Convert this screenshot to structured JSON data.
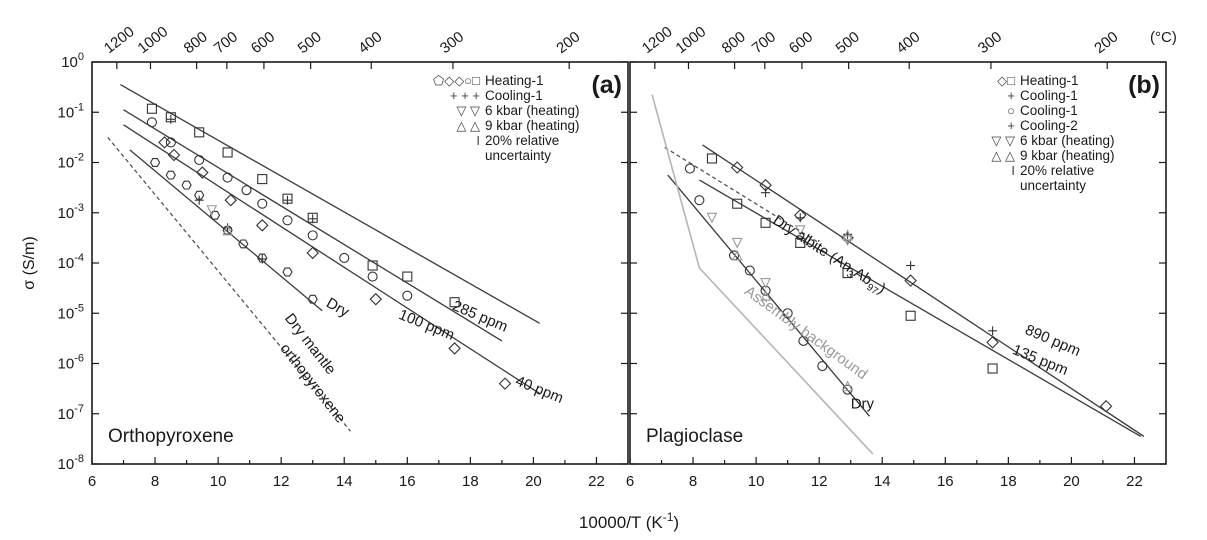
{
  "chart_data": [
    {
      "type": "scatter",
      "panel_label": "(a)",
      "mineral": "Orthopyroxene",
      "xlabel": "10000/T (K",
      "xlabel_sup": "-1",
      "xlabel_end": ")",
      "ylabel": "σ (S/m)",
      "xlim": [
        6,
        23
      ],
      "ylim": [
        -8,
        0
      ],
      "y_scale": "log",
      "x_ticks": [
        6,
        8,
        10,
        12,
        14,
        16,
        18,
        20,
        22
      ],
      "y_ticks": [
        0,
        -1,
        -2,
        -3,
        -4,
        -5,
        -6,
        -7,
        -8
      ],
      "top_axis_label": "",
      "top_ticks": [
        1200,
        1000,
        800,
        700,
        600,
        500,
        400,
        300,
        200
      ],
      "legend_position": "top-right",
      "legend": [
        {
          "symbols": "⬠◇◇○□",
          "label": "Heating-1"
        },
        {
          "symbols": "+ + +",
          "label": "Cooling-1"
        },
        {
          "symbols": "▽ ▽",
          "label": "6 kbar (heating)"
        },
        {
          "symbols": "△ △",
          "label": "9 kbar (heating)"
        },
        {
          "symbols": "I",
          "label": "20% relative"
        },
        {
          "symbols": "",
          "label": "uncertainty"
        }
      ],
      "series": [
        {
          "name": "285 ppm",
          "line": [
            [
              6.9,
              -0.45
            ],
            [
              20.2,
              -5.2
            ]
          ],
          "points": [
            [
              7.9,
              -0.93,
              "square"
            ],
            [
              8.5,
              -1.1,
              "square"
            ],
            [
              9.4,
              -1.4,
              "square"
            ],
            [
              10.3,
              -1.8,
              "square"
            ],
            [
              11.4,
              -2.33,
              "square"
            ],
            [
              12.2,
              -2.72,
              "square"
            ],
            [
              13.0,
              -3.1,
              "square"
            ],
            [
              14.9,
              -4.05,
              "square"
            ],
            [
              16.0,
              -4.27,
              "square"
            ],
            [
              17.5,
              -4.78,
              "square"
            ],
            [
              8.5,
              -1.14,
              "plus"
            ],
            [
              12.2,
              -2.75,
              "plus"
            ],
            [
              13.0,
              -3.12,
              "plus"
            ]
          ]
        },
        {
          "name": "100 ppm",
          "line": [
            [
              7.0,
              -0.95
            ],
            [
              19.0,
              -5.55
            ]
          ],
          "points": [
            [
              7.9,
              -1.2,
              "circle"
            ],
            [
              8.5,
              -1.6,
              "circle"
            ],
            [
              9.4,
              -1.95,
              "circle"
            ],
            [
              10.3,
              -2.3,
              "circle"
            ],
            [
              10.9,
              -2.55,
              "circle"
            ],
            [
              11.4,
              -2.82,
              "circle"
            ],
            [
              12.2,
              -3.15,
              "circle"
            ],
            [
              13.0,
              -3.45,
              "circle"
            ],
            [
              14.0,
              -3.9,
              "circle"
            ],
            [
              14.9,
              -4.27,
              "circle"
            ],
            [
              16.0,
              -4.65,
              "circle"
            ]
          ]
        },
        {
          "name": "40 ppm",
          "line": [
            [
              7.0,
              -1.25
            ],
            [
              20.2,
              -6.6
            ]
          ],
          "points": [
            [
              8.3,
              -1.6,
              "diamond"
            ],
            [
              8.6,
              -1.85,
              "diamond"
            ],
            [
              9.5,
              -2.2,
              "diamond"
            ],
            [
              10.4,
              -2.75,
              "diamond"
            ],
            [
              11.4,
              -3.25,
              "diamond"
            ],
            [
              13.0,
              -3.8,
              "diamond"
            ],
            [
              15.0,
              -4.72,
              "diamond"
            ],
            [
              17.5,
              -5.7,
              "diamond"
            ],
            [
              19.1,
              -6.4,
              "diamond"
            ]
          ]
        },
        {
          "name": "Dry",
          "line": [
            [
              7.2,
              -1.75
            ],
            [
              13.3,
              -4.95
            ]
          ],
          "points": [
            [
              8.0,
              -2.0,
              "hexagon"
            ],
            [
              8.5,
              -2.25,
              "hexagon"
            ],
            [
              9.0,
              -2.45,
              "hexagon"
            ],
            [
              9.4,
              -2.65,
              "hexagon"
            ],
            [
              9.9,
              -3.05,
              "hexagon"
            ],
            [
              10.3,
              -3.35,
              "hexagon"
            ],
            [
              10.8,
              -3.62,
              "hexagon"
            ],
            [
              11.4,
              -3.9,
              "hexagon"
            ],
            [
              12.2,
              -4.18,
              "hexagon"
            ],
            [
              13.0,
              -4.72,
              "hexagon"
            ],
            [
              9.4,
              -2.75,
              "plus"
            ],
            [
              10.3,
              -3.3,
              "plus"
            ],
            [
              11.4,
              -3.92,
              "plus"
            ],
            [
              9.8,
              -2.95,
              "down"
            ],
            [
              10.3,
              -3.35,
              "up"
            ]
          ]
        },
        {
          "name": "Dry mantle orthopyroxene",
          "style": "dashed",
          "line": [
            [
              6.5,
              -1.5
            ],
            [
              14.2,
              -7.35
            ]
          ],
          "points": []
        }
      ],
      "line_labels": [
        {
          "text": "285 ppm",
          "at": [
            17.4,
            -4.92
          ],
          "rotate": 23
        },
        {
          "text": "100 ppm",
          "at": [
            15.7,
            -5.1
          ],
          "rotate": 22
        },
        {
          "text": "40 ppm",
          "at": [
            19.4,
            -6.42
          ],
          "rotate": 22
        },
        {
          "text": "Dry",
          "at": [
            13.4,
            -4.85
          ],
          "rotate": 30
        },
        {
          "text": "Dry mantle",
          "at": [
            12.1,
            -5.1
          ],
          "rotate": 52
        },
        {
          "text": "orthopyroxene",
          "at": [
            11.95,
            -5.7
          ],
          "rotate": 52
        }
      ]
    },
    {
      "type": "scatter",
      "panel_label": "(b)",
      "mineral": "Plagioclase",
      "xlabel": "",
      "xlim": [
        6,
        23
      ],
      "ylim": [
        -8,
        0
      ],
      "y_scale": "log",
      "x_ticks": [
        6,
        8,
        10,
        12,
        14,
        16,
        18,
        20,
        22
      ],
      "top_axis_label": "(°C)",
      "top_ticks": [
        1200,
        1000,
        800,
        700,
        600,
        500,
        400,
        300,
        200
      ],
      "legend_position": "top-right",
      "legend": [
        {
          "symbols": "◇□",
          "label": "Heating-1"
        },
        {
          "symbols": "+",
          "label": "Cooling-1"
        },
        {
          "symbols": "○",
          "label": "Cooling-1"
        },
        {
          "symbols": "+",
          "label": "Cooling-2"
        },
        {
          "symbols": "▽ ▽",
          "label": "6 kbar (heating)"
        },
        {
          "symbols": "△ △",
          "label": "9 kbar (heating)"
        },
        {
          "symbols": "I",
          "label": "20% relative"
        },
        {
          "symbols": "",
          "label": "uncertainty"
        }
      ],
      "series": [
        {
          "name": "890 ppm",
          "line": [
            [
              8.3,
              -1.65
            ],
            [
              22.3,
              -7.45
            ]
          ],
          "points": [
            [
              9.4,
              -2.1,
              "diamond"
            ],
            [
              10.3,
              -2.45,
              "diamond"
            ],
            [
              11.4,
              -3.05,
              "diamond"
            ],
            [
              12.9,
              -3.5,
              "diamond"
            ],
            [
              14.9,
              -4.35,
              "diamond"
            ],
            [
              17.5,
              -5.58,
              "diamond"
            ],
            [
              21.1,
              -6.85,
              "diamond"
            ],
            [
              10.3,
              -2.6,
              "plus"
            ],
            [
              12.9,
              -3.43,
              "plus"
            ],
            [
              14.9,
              -4.05,
              "plus"
            ],
            [
              17.5,
              -5.35,
              "plus"
            ]
          ]
        },
        {
          "name": "135 ppm",
          "line": [
            [
              8.2,
              -2.35
            ],
            [
              22.2,
              -7.45
            ]
          ],
          "points": [
            [
              8.6,
              -1.92,
              "square"
            ],
            [
              9.4,
              -2.82,
              "square"
            ],
            [
              10.3,
              -3.2,
              "square"
            ],
            [
              11.4,
              -3.6,
              "square"
            ],
            [
              12.9,
              -4.2,
              "square"
            ],
            [
              14.9,
              -5.05,
              "square"
            ],
            [
              17.5,
              -6.1,
              "square"
            ],
            [
              11.4,
              -3.1,
              "plus"
            ],
            [
              11.4,
              -3.35,
              "down"
            ],
            [
              12.9,
              -3.55,
              "down"
            ],
            [
              12.9,
              -3.45,
              "up"
            ]
          ]
        },
        {
          "name": "Dry albite",
          "style": "dashed",
          "line": [
            [
              7.1,
              -1.7
            ],
            [
              12.0,
              -3.6
            ]
          ],
          "points": []
        },
        {
          "name": "Dry",
          "line": [
            [
              7.2,
              -2.25
            ],
            [
              13.6,
              -7.05
            ]
          ],
          "points": [
            [
              7.9,
              -2.12,
              "circle"
            ],
            [
              8.2,
              -2.75,
              "circle"
            ],
            [
              9.3,
              -3.85,
              "circle"
            ],
            [
              9.8,
              -4.15,
              "circle"
            ],
            [
              10.3,
              -4.55,
              "circle"
            ],
            [
              11.0,
              -5.0,
              "circle"
            ],
            [
              11.5,
              -5.55,
              "circle"
            ],
            [
              12.1,
              -6.05,
              "circle"
            ],
            [
              12.9,
              -6.52,
              "circle"
            ],
            [
              8.6,
              -3.1,
              "down"
            ],
            [
              9.4,
              -3.6,
              "down"
            ],
            [
              10.3,
              -4.4,
              "down"
            ],
            [
              9.4,
              -3.85,
              "up"
            ],
            [
              10.3,
              -4.65,
              "up"
            ],
            [
              12.9,
              -6.45,
              "up"
            ]
          ]
        },
        {
          "name": "Assembly background",
          "style": "gray",
          "line": [
            [
              6.7,
              -0.65
            ],
            [
              8.2,
              -4.1
            ],
            [
              13.7,
              -7.8
            ]
          ],
          "points": []
        }
      ],
      "line_labels": [
        {
          "text": "890 ppm",
          "at": [
            18.5,
            -5.4
          ],
          "rotate": 23
        },
        {
          "text": "135 ppm",
          "at": [
            18.1,
            -5.8
          ],
          "rotate": 22
        },
        {
          "text": "Dry",
          "at": [
            13.0,
            -6.9
          ],
          "rotate": 0
        },
        {
          "text": "Dry albite (An",
          "at": [
            10.5,
            -3.2
          ],
          "rotate": 33,
          "sub1": "3",
          "mid": "Ab",
          "sub2": "97",
          "end": ")"
        },
        {
          "text": "Assembly background",
          "at": [
            9.6,
            -4.6
          ],
          "rotate": 36
        }
      ]
    }
  ]
}
